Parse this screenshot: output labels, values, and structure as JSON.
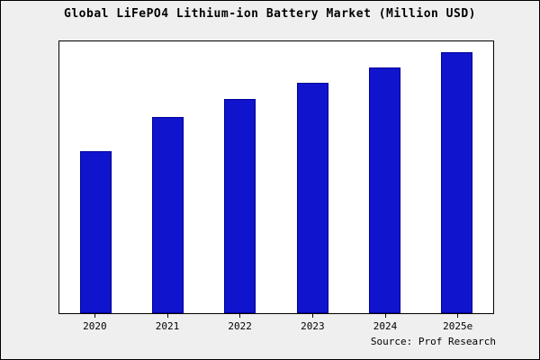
{
  "title": "Global LiFePO4 Lithium-ion Battery Market (Million USD)",
  "source": "Source: Prof Research",
  "colors": {
    "bar": "#1114cd",
    "bar_border": "#00009a",
    "frame_background": "#efefef",
    "plot_background": "#ffffff",
    "border": "#000000"
  },
  "chart_data": {
    "type": "bar",
    "title": "Global LiFePO4 Lithium-ion Battery Market (Million USD)",
    "categories": [
      "2020",
      "2021",
      "2022",
      "2023",
      "2024",
      "2025e"
    ],
    "values": [
      62,
      75,
      82,
      88,
      94,
      100
    ],
    "xlabel": "",
    "ylabel": "",
    "ylim": [
      0,
      104
    ],
    "grid": false,
    "legend": false,
    "y_axis_tick_labels_visible": false,
    "annotation": "Source: Prof Research"
  }
}
